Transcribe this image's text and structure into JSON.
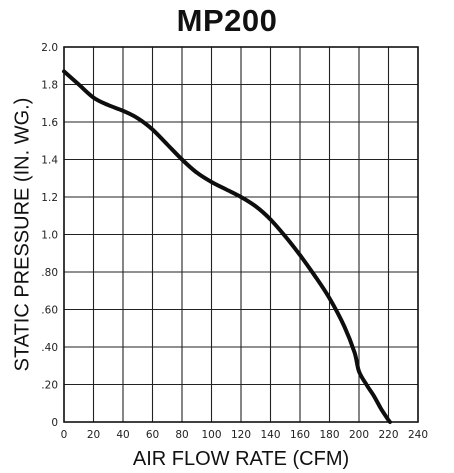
{
  "chart_data": {
    "type": "line",
    "title": "MP200",
    "xlabel": "AIR FLOW RATE (CFM)",
    "ylabel": "STATIC PRESSURE (IN. WG.)",
    "xlim": [
      0,
      240
    ],
    "ylim": [
      0,
      2.0
    ],
    "xticks": [
      "0",
      "20",
      "40",
      "60",
      "80",
      "100",
      "120",
      "140",
      "160",
      "180",
      "200",
      "220",
      "240"
    ],
    "yticks": [
      "0",
      ".20",
      ".40",
      ".60",
      ".80",
      "1.0",
      "1.2",
      "1.4",
      "1.6",
      "1.8",
      "2.0"
    ],
    "xtick_values": [
      0,
      20,
      40,
      60,
      80,
      100,
      120,
      140,
      160,
      180,
      200,
      220,
      240
    ],
    "ytick_values": [
      0,
      0.2,
      0.4,
      0.6,
      0.8,
      1.0,
      1.2,
      1.4,
      1.6,
      1.8,
      2.0
    ],
    "grid": true,
    "series": [
      {
        "x": [
          0,
          10,
          20,
          30,
          40,
          50,
          60,
          70,
          80,
          90,
          100,
          110,
          120,
          130,
          140,
          150,
          160,
          170,
          180,
          190,
          197,
          200,
          205,
          210,
          215,
          220,
          224
        ],
        "y": [
          1.87,
          1.8,
          1.73,
          1.69,
          1.66,
          1.62,
          1.56,
          1.48,
          1.4,
          1.33,
          1.28,
          1.24,
          1.2,
          1.15,
          1.08,
          0.99,
          0.89,
          0.78,
          0.66,
          0.51,
          0.37,
          0.27,
          0.2,
          0.14,
          0.07,
          0.01,
          -0.03
        ]
      }
    ],
    "colors": {
      "line": "#0e0e0e",
      "grid": "#222222",
      "background": "#ffffff"
    }
  }
}
